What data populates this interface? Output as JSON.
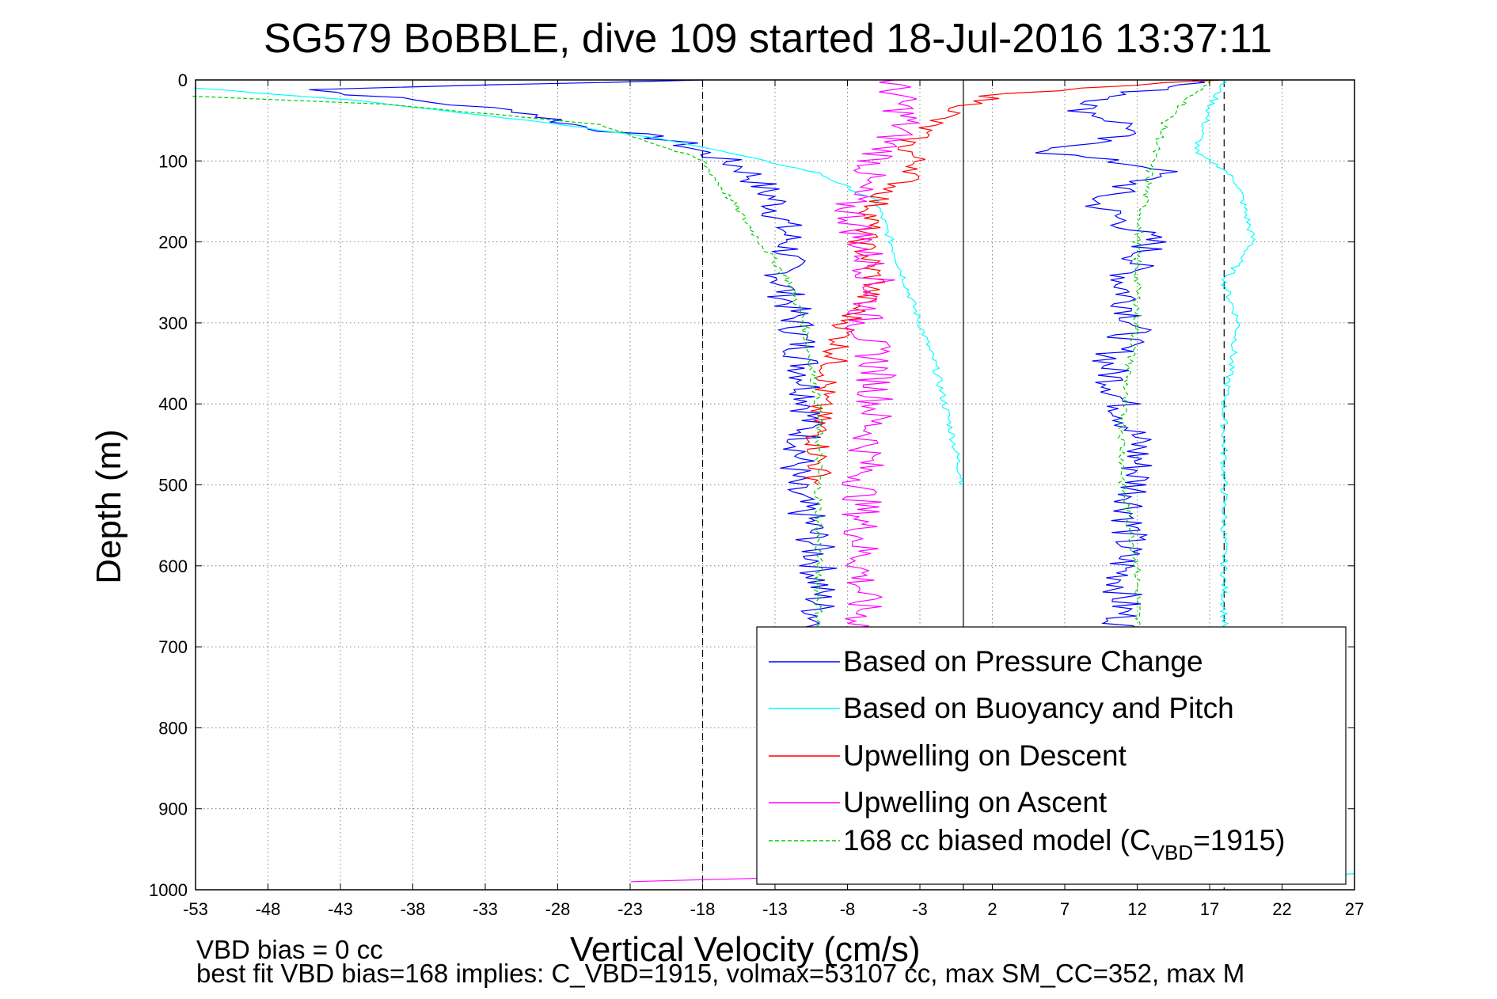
{
  "chart_data": {
    "type": "line",
    "title": "SG579 BoBBLE, dive 109 started 18-Jul-2016 13:37:11",
    "xlabel": "Vertical Velocity (cm/s)",
    "ylabel": "Depth (m)",
    "xlim": [
      -53,
      27
    ],
    "ylim": [
      0,
      1000
    ],
    "y_reversed": true,
    "x_ticks": [
      -53,
      -48,
      -43,
      -38,
      -33,
      -28,
      -23,
      -18,
      -13,
      -8,
      -3,
      2,
      7,
      12,
      17,
      22,
      27
    ],
    "y_ticks": [
      0,
      100,
      200,
      300,
      400,
      500,
      600,
      700,
      800,
      900,
      1000
    ],
    "grid": "dotted",
    "legend_position": "lower-right",
    "reference_lines": [
      {
        "x": -18,
        "style": "dashed"
      },
      {
        "x": 0,
        "style": "solid"
      },
      {
        "x": 18,
        "style": "dashed"
      }
    ],
    "series": [
      {
        "name": "Based on Pressure Change",
        "color": "#0000ff",
        "style": "solid",
        "segments": [
          {
            "x": [
              -18,
              -45,
              -38,
              -30,
              -27,
              -20,
              -15,
              -13,
              -12,
              -12.5,
              -11.5,
              -11,
              -10.5,
              -11,
              -12,
              -10.5,
              -10,
              -10,
              -10
            ],
            "y": [
              0,
              12,
              25,
              40,
              55,
              75,
              110,
              150,
              200,
              250,
              300,
              350,
              400,
              450,
              500,
              550,
              600,
              650,
              680
            ]
          },
          {
            "x": [
              17,
              12,
              8,
              12,
              6,
              14,
              9,
              13,
              11,
              12,
              10,
              11,
              12,
              12,
              11.5,
              11,
              11,
              11
            ],
            "y": [
              0,
              15,
              35,
              60,
              90,
              110,
              150,
              200,
              250,
              300,
              350,
              400,
              450,
              500,
              550,
              600,
              650,
              680
            ]
          },
          {
            "x": [
              2,
              14,
              26
            ],
            "y": [
              990,
              985,
              980
            ]
          }
        ]
      },
      {
        "name": "Based on Buoyancy and Pitch",
        "color": "#00ffff",
        "style": "solid",
        "segments": [
          {
            "x": [
              -53,
              -42,
              -30,
              -20,
              -10,
              -6,
              -5,
              -4,
              -3,
              -2,
              -1,
              0
            ],
            "y": [
              10,
              25,
              50,
              75,
              115,
              150,
              200,
              250,
              300,
              350,
              420,
              500
            ]
          },
          {
            "x": [
              18,
              17,
              16,
              18,
              19,
              20,
              18,
              19,
              18,
              18,
              18,
              18
            ],
            "y": [
              0,
              35,
              90,
              110,
              130,
              200,
              250,
              300,
              400,
              500,
              600,
              680
            ]
          },
          {
            "x": [
              12,
              20,
              27
            ],
            "y": [
              985,
              990,
              980
            ]
          }
        ]
      },
      {
        "name": "Upwelling on Descent",
        "color": "#ff0000",
        "style": "solid",
        "segments": [
          {
            "x": [
              17,
              8,
              2,
              -2,
              -4,
              -3,
              -6,
              -7,
              -6,
              -8,
              -9,
              -10,
              -10,
              -10
            ],
            "y": [
              0,
              10,
              20,
              50,
              80,
              110,
              150,
              200,
              250,
              300,
              350,
              400,
              450,
              500
            ]
          }
        ]
      },
      {
        "name": "Upwelling on Ascent",
        "color": "#ff00ff",
        "style": "solid",
        "segments": [
          {
            "x": [
              -5,
              -4,
              -6,
              -8,
              -7,
              -6,
              -7,
              -6,
              -6,
              -7,
              -7,
              -7
            ],
            "y": [
              0,
              50,
              100,
              150,
              200,
              250,
              300,
              350,
              400,
              500,
              600,
              680
            ]
          },
          {
            "x": [
              -23,
              -13,
              -8
            ],
            "y": [
              990,
              985,
              980
            ]
          }
        ]
      },
      {
        "name": "168 cc biased model (C_VBD=1915)",
        "color": "#00cc00",
        "style": "dashed",
        "segments": [
          {
            "x": [
              -53,
              -40,
              -25,
              -18,
              -14,
              -12,
              -11,
              -10,
              -10,
              -10,
              -10
            ],
            "y": [
              20,
              30,
              55,
              100,
              200,
              250,
              300,
              400,
              500,
              600,
              680
            ]
          },
          {
            "x": [
              17,
              14,
              13,
              12,
              12,
              11,
              11,
              12,
              12
            ],
            "y": [
              0,
              50,
              100,
              200,
              300,
              400,
              500,
              600,
              680
            ]
          }
        ]
      }
    ],
    "legend_entries": [
      {
        "label": "Based on Pressure Change"
      },
      {
        "label": "Based on Buoyancy and Pitch"
      },
      {
        "label": "Upwelling on Descent"
      },
      {
        "label": "Upwelling on Ascent"
      },
      {
        "label_main": "168 cc biased model (C",
        "label_sub": "VBD",
        "label_tail": "=1915)"
      }
    ],
    "footer": {
      "line1": "VBD bias = 0 cc",
      "line2": "best fit VBD bias=168 implies: C_VBD=1915, volmax=53107 cc, max SM_CC=352, max M"
    }
  }
}
